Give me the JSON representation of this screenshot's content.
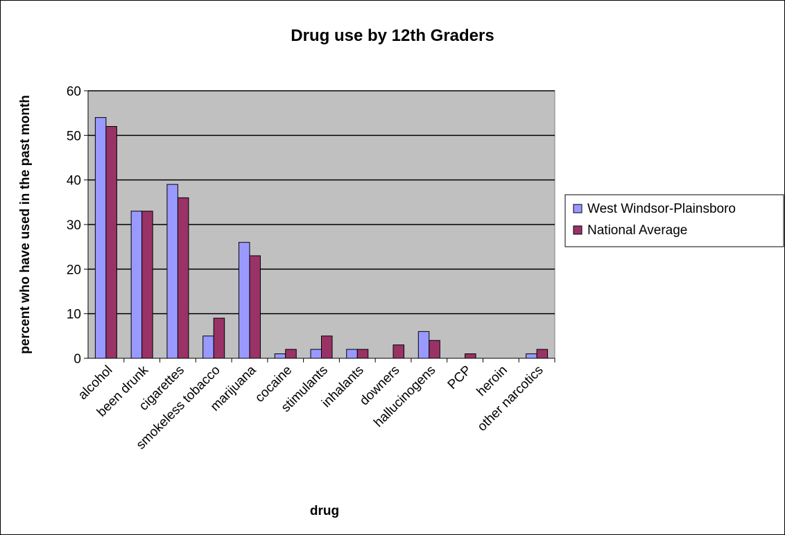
{
  "chart_data": {
    "type": "bar",
    "title": "Drug use by 12th Graders",
    "xlabel": "drug",
    "ylabel": "percent who have used in the past month",
    "ylim": [
      0,
      60
    ],
    "yticks": [
      0,
      10,
      20,
      30,
      40,
      50,
      60
    ],
    "grid": true,
    "legend_position": "right",
    "categories": [
      "alcohol",
      "been drunk",
      "cigarettes",
      "smokeless tobacco",
      "marijuana",
      "cocaine",
      "stimulants",
      "inhalants",
      "downers",
      "hallucinogens",
      "PCP",
      "heroin",
      "other narcotics"
    ],
    "series": [
      {
        "name": "West Windsor-Plainsboro",
        "color": "#9999ff",
        "values": [
          54,
          33,
          39,
          5,
          26,
          1,
          2,
          2,
          0,
          6,
          0,
          0,
          1
        ]
      },
      {
        "name": "National Average",
        "color": "#993366",
        "values": [
          52,
          33,
          36,
          9,
          23,
          2,
          5,
          2,
          3,
          4,
          1,
          0,
          2
        ]
      }
    ],
    "plot_background": "#c0c0c0"
  }
}
